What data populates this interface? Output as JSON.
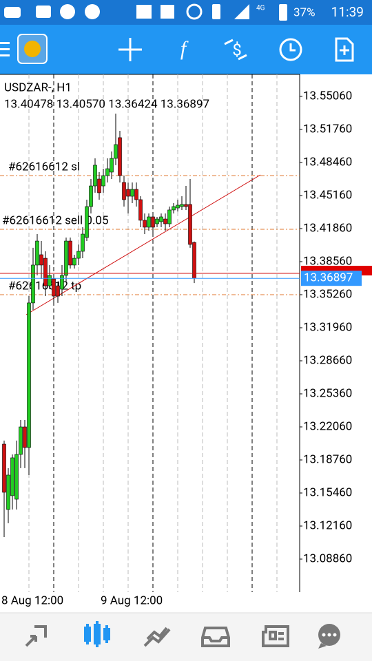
{
  "status_bar": {
    "network": "4G",
    "battery": "37%",
    "time": "11:39"
  },
  "chart_data": {
    "type": "candlestick",
    "title": "USDZAR-, H1",
    "subtitle": "13.40478 13.40570 13.36424 13.36897",
    "open": [
      13.2034,
      13.1381,
      13.1519,
      13.1484,
      13.1931,
      13.2206,
      13.2,
      13.3444,
      13.3822,
      13.3925,
      13.389,
      13.3615,
      13.3684,
      13.3615,
      13.3581,
      13.3719,
      13.4062,
      13.3822,
      13.389,
      13.3959,
      13.4097,
      13.4406,
      13.4612,
      13.4681,
      13.4612,
      13.4715,
      13.475,
      13.4887,
      13.5094,
      13.4647,
      13.4578,
      13.4509,
      13.4578,
      13.4475,
      13.4269,
      13.42,
      13.4303,
      13.4234,
      13.4255,
      13.4282,
      13.4234,
      13.4372,
      13.4392,
      13.4406,
      13.4427,
      13.4427,
      13.40478
    ],
    "high": [
      13.2069,
      13.1794,
      13.1931,
      13.2069,
      13.2275,
      13.2275,
      13.3512,
      13.3994,
      13.4131,
      13.4062,
      13.3959,
      13.3822,
      13.3719,
      13.365,
      13.3822,
      13.4097,
      13.4097,
      13.3925,
      13.4028,
      13.42,
      13.4475,
      13.4681,
      13.4887,
      13.475,
      13.4784,
      13.4887,
      13.4956,
      13.5334,
      13.5162,
      13.4715,
      13.4647,
      13.4647,
      13.4647,
      13.4509,
      13.4337,
      13.4337,
      13.4337,
      13.4303,
      13.4337,
      13.4337,
      13.4406,
      13.444,
      13.4475,
      13.4509,
      13.4612,
      13.4681,
      13.4057
    ],
    "low": [
      13.1106,
      13.1244,
      13.1381,
      13.1381,
      13.1794,
      13.1794,
      13.1725,
      13.3375,
      13.3719,
      13.3684,
      13.3512,
      13.3581,
      13.3444,
      13.3444,
      13.3512,
      13.365,
      13.3787,
      13.3787,
      13.3822,
      13.389,
      13.4062,
      13.4337,
      13.4544,
      13.4475,
      13.4544,
      13.4647,
      13.4681,
      13.4819,
      13.4647,
      13.4406,
      13.4337,
      13.444,
      13.4406,
      13.42,
      13.4131,
      13.4165,
      13.4131,
      13.42,
      13.42,
      13.4165,
      13.42,
      13.4337,
      13.4355,
      13.4372,
      13.4372,
      13.3994,
      13.36424
    ],
    "close": [
      13.1553,
      13.1725,
      13.1897,
      13.1931,
      13.2206,
      13.2,
      13.3444,
      13.3822,
      13.4062,
      13.3822,
      13.3615,
      13.3719,
      13.3512,
      13.3512,
      13.3719,
      13.4062,
      13.3822,
      13.389,
      13.3959,
      13.4131,
      13.4406,
      13.4612,
      13.4819,
      13.4544,
      13.4715,
      13.4784,
      13.4887,
      13.5025,
      13.4715,
      13.4475,
      13.4509,
      13.4578,
      13.4475,
      13.4269,
      13.42,
      13.4303,
      13.42,
      13.4282,
      13.4303,
      13.4234,
      13.4372,
      13.4406,
      13.442,
      13.4427,
      13.4406,
      13.4028,
      13.36897
    ],
    "up_color": "#22cc22",
    "down_color": "#d01010",
    "x_labels": [
      "8 Aug 12:00",
      "9 Aug 12:00"
    ],
    "ylim": [
      13.0556,
      13.5726
    ],
    "yticks": [
      {
        "value": 13.5506,
        "label": "13.55060"
      },
      {
        "value": 13.5176,
        "label": "13.51760"
      },
      {
        "value": 13.4846,
        "label": "13.48460"
      },
      {
        "value": 13.4516,
        "label": "13.45160"
      },
      {
        "value": 13.4186,
        "label": "13.41860"
      },
      {
        "value": 13.3856,
        "label": "13.38560"
      },
      {
        "value": 13.3526,
        "label": "13.35260"
      },
      {
        "value": 13.3196,
        "label": "13.31960"
      },
      {
        "value": 13.2866,
        "label": "13.28660"
      },
      {
        "value": 13.2536,
        "label": "13.25360"
      },
      {
        "value": 13.2206,
        "label": "13.22060"
      },
      {
        "value": 13.1876,
        "label": "13.18760"
      },
      {
        "value": 13.1546,
        "label": "13.15460"
      },
      {
        "value": 13.1216,
        "label": "13.12160"
      },
      {
        "value": 13.0886,
        "label": "13.08860"
      }
    ],
    "order_lines": [
      {
        "label": "#62616612 sl",
        "value": 13.4715
      },
      {
        "label": "#62616612 sell 0.05",
        "value": 13.4179
      },
      {
        "label": "#62616612 tp",
        "value": 13.3526
      }
    ],
    "bid": 13.36897,
    "ask": 13.3739
  }
}
